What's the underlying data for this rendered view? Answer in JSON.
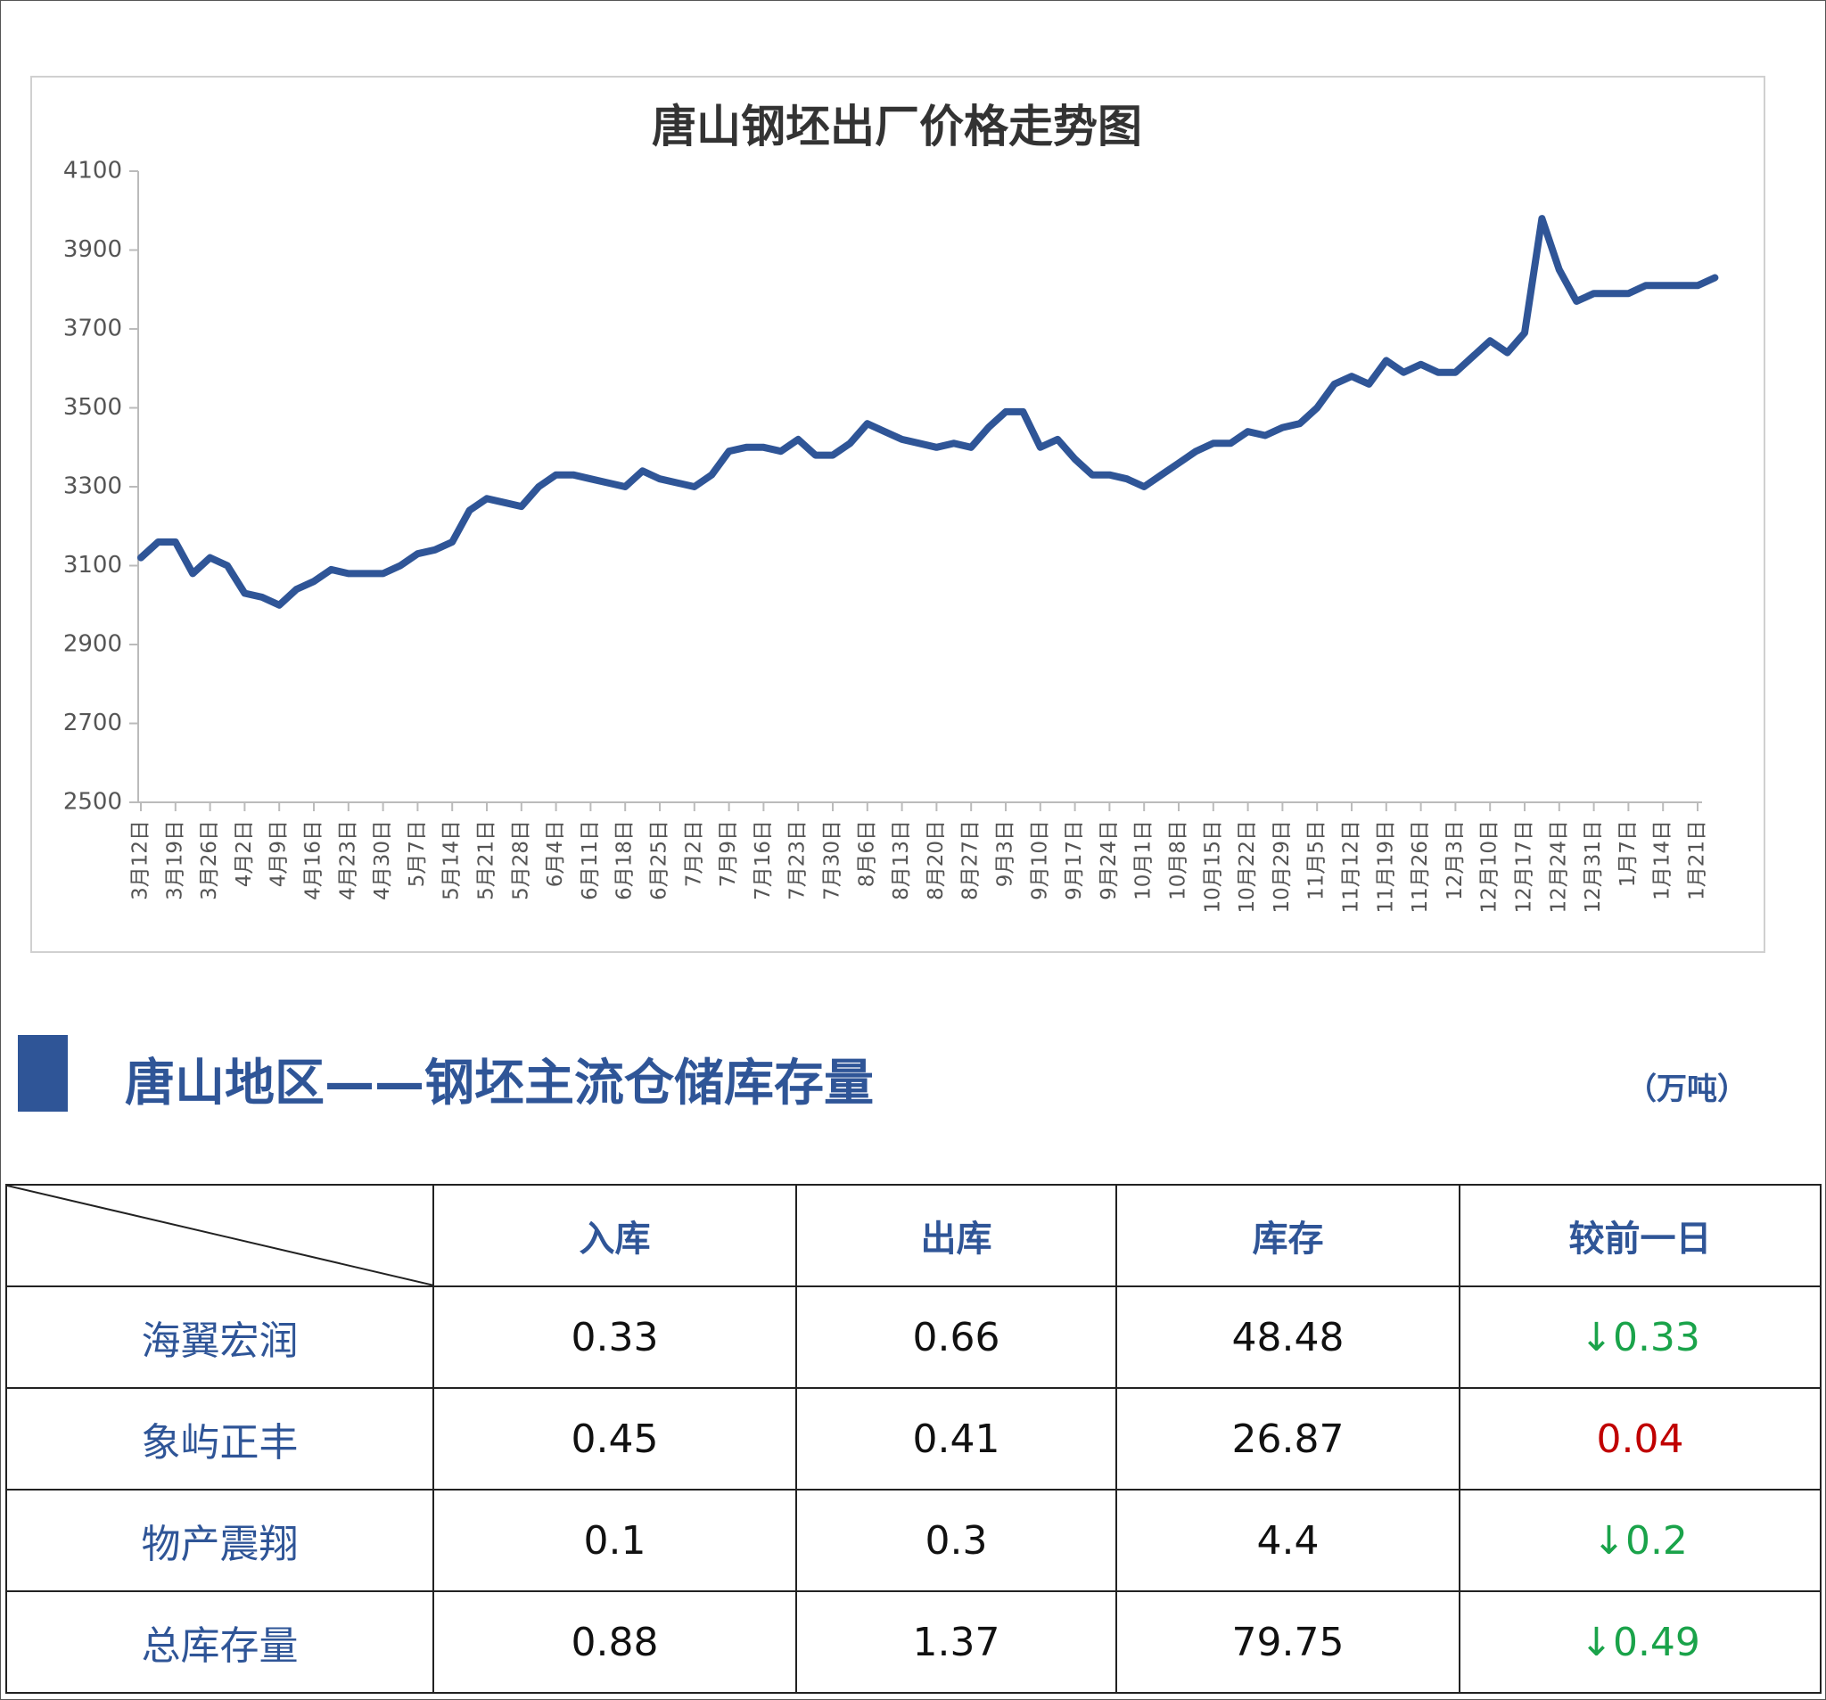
{
  "chart_data": {
    "type": "line",
    "title": "唐山钢坯出厂价格走势图",
    "categories": [
      "3月12日",
      null,
      "3月19日",
      null,
      "3月26日",
      null,
      "4月2日",
      null,
      "4月9日",
      null,
      "4月16日",
      null,
      "4月23日",
      null,
      "4月30日",
      null,
      "5月7日",
      null,
      "5月14日",
      null,
      "5月21日",
      null,
      "5月28日",
      null,
      "6月4日",
      null,
      "6月11日",
      null,
      "6月18日",
      null,
      "6月25日",
      null,
      "7月2日",
      null,
      "7月9日",
      null,
      "7月16日",
      null,
      "7月23日",
      null,
      "7月30日",
      null,
      "8月6日",
      null,
      "8月13日",
      null,
      "8月20日",
      null,
      "8月27日",
      null,
      "9月3日",
      null,
      "9月10日",
      null,
      "9月17日",
      null,
      "9月24日",
      null,
      "10月1日",
      null,
      "10月8日",
      null,
      "10月15日",
      null,
      "10月22日",
      null,
      "10月29日",
      null,
      "11月5日",
      null,
      "11月12日",
      null,
      "11月19日",
      null,
      "11月26日",
      null,
      "12月3日",
      null,
      "12月10日",
      null,
      "12月17日",
      null,
      "12月24日",
      null,
      "12月31日",
      null,
      "1月7日",
      null,
      "1月14日",
      null,
      "1月21日",
      null
    ],
    "series": [
      {
        "name": "钢坯出厂价格",
        "color": "#2f5597",
        "values": [
          3120,
          3160,
          3160,
          3080,
          3120,
          3100,
          3030,
          3020,
          3000,
          3040,
          3060,
          3090,
          3080,
          3080,
          3080,
          3100,
          3130,
          3140,
          3160,
          3240,
          3270,
          3260,
          3250,
          3300,
          3330,
          3330,
          3320,
          3310,
          3300,
          3340,
          3320,
          3310,
          3300,
          3330,
          3390,
          3400,
          3400,
          3390,
          3420,
          3380,
          3380,
          3410,
          3460,
          3440,
          3420,
          3410,
          3400,
          3410,
          3400,
          3450,
          3490,
          3490,
          3400,
          3420,
          3370,
          3330,
          3330,
          3320,
          3300,
          3330,
          3360,
          3390,
          3410,
          3410,
          3440,
          3430,
          3450,
          3460,
          3500,
          3560,
          3580,
          3560,
          3620,
          3590,
          3610,
          3590,
          3590,
          3630,
          3670,
          3640,
          3690,
          3980,
          3850,
          3770,
          3790,
          3790,
          3790,
          3810,
          3810,
          3810,
          3810,
          3830
        ]
      }
    ],
    "ylim": [
      2500,
      4100
    ],
    "yticks": [
      2500,
      2700,
      2900,
      3100,
      3300,
      3500,
      3700,
      3900,
      4100
    ],
    "grid": false
  },
  "section": {
    "title": "唐山地区——钢坯主流仓储库存量",
    "unit": "（万吨）"
  },
  "table": {
    "header": [
      "入库",
      "出库",
      "库存",
      "较前一日"
    ],
    "rows": [
      {
        "name": "海翼宏润",
        "cells": [
          "0.33",
          "0.66",
          "48.48",
          "↓0.33"
        ],
        "change_color": "#1aa34a"
      },
      {
        "name": "象屿正丰",
        "cells": [
          "0.45",
          "0.41",
          "26.87",
          "0.04"
        ],
        "change_color": "#c00000"
      },
      {
        "name": "物产震翔",
        "cells": [
          "0.1",
          "0.3",
          "4.4",
          "↓0.2"
        ],
        "change_color": "#1aa34a"
      },
      {
        "name": "总库存量",
        "cells": [
          "0.88",
          "1.37",
          "79.75",
          "↓0.49"
        ],
        "change_color": "#1aa34a"
      }
    ]
  }
}
